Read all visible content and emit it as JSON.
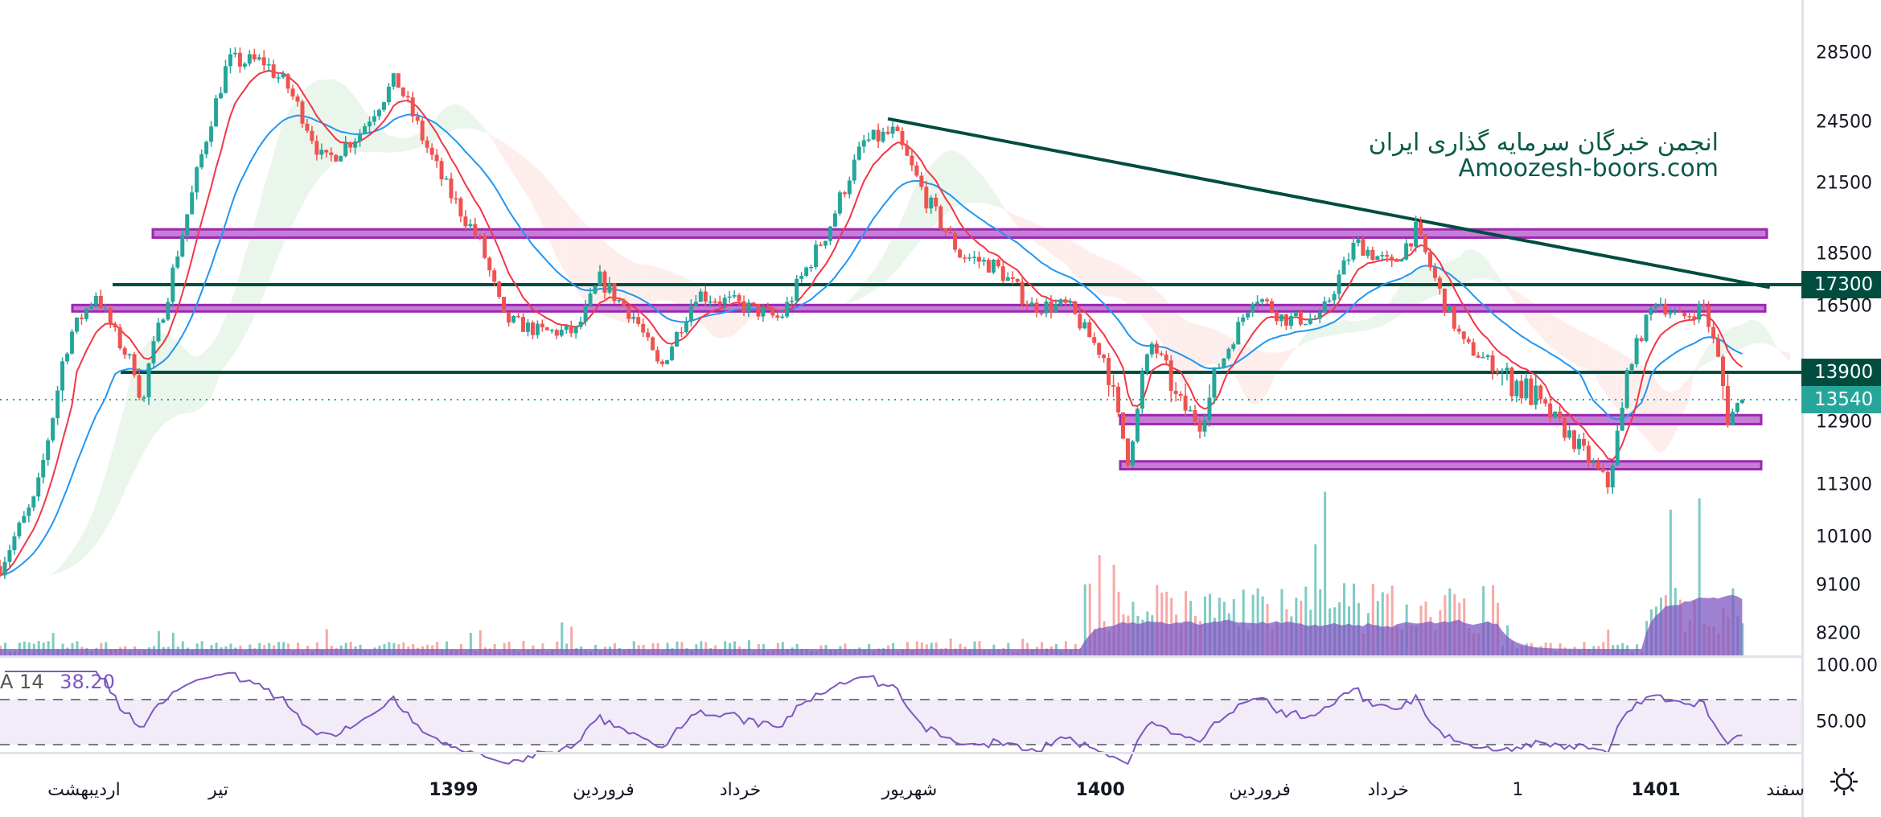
{
  "watermark": {
    "line1": "انجمن خبرگان سرمایه گذاری ایران",
    "line2": "Amoozesh-boors.com"
  },
  "price_axis": {
    "ticks": [
      "28500",
      "24500",
      "21500",
      "18500",
      "16500",
      "12900",
      "11300",
      "10100",
      "9100",
      "8200"
    ]
  },
  "badges": [
    {
      "value": "17300",
      "color": "#004d40"
    },
    {
      "value": "13900",
      "color": "#004d40"
    },
    {
      "value": "13540",
      "color": "#26a69a"
    }
  ],
  "rsi": {
    "label": "A 14",
    "value": "38.20",
    "ticks": [
      "100.00",
      "50.00"
    ],
    "upper": 70,
    "lower": 30,
    "color": "#7e57c2"
  },
  "time_axis": [
    {
      "label": "اردیبهشت",
      "bold": false
    },
    {
      "label": "تیر",
      "bold": false
    },
    {
      "label": "1399",
      "bold": true
    },
    {
      "label": "فروردین",
      "bold": false
    },
    {
      "label": "خرداد",
      "bold": false
    },
    {
      "label": "شهریور",
      "bold": false
    },
    {
      "label": "1400",
      "bold": true
    },
    {
      "label": "فروردین",
      "bold": false
    },
    {
      "label": "خرداد",
      "bold": false
    },
    {
      "label": "1",
      "bold": false
    },
    {
      "label": "1401",
      "bold": true
    },
    {
      "label": "سفند",
      "bold": false
    }
  ],
  "settings_icon": "gear-icon",
  "chart_data": {
    "type": "candlestick",
    "price_path": [
      [
        0,
        9500
      ],
      [
        30,
        11000
      ],
      [
        60,
        15500
      ],
      [
        80,
        17000
      ],
      [
        100,
        15000
      ],
      [
        120,
        13500
      ],
      [
        140,
        17000
      ],
      [
        160,
        21000
      ],
      [
        190,
        28000
      ],
      [
        220,
        28000
      ],
      [
        240,
        26500
      ],
      [
        270,
        22500
      ],
      [
        300,
        24000
      ],
      [
        330,
        27000
      ],
      [
        350,
        24000
      ],
      [
        370,
        21500
      ],
      [
        400,
        19000
      ],
      [
        420,
        16000
      ],
      [
        450,
        15500
      ],
      [
        480,
        15500
      ],
      [
        500,
        17500
      ],
      [
        530,
        16000
      ],
      [
        550,
        14000
      ],
      [
        580,
        17000
      ],
      [
        620,
        16500
      ],
      [
        650,
        16000
      ],
      [
        690,
        19500
      ],
      [
        720,
        23500
      ],
      [
        745,
        24000
      ],
      [
        770,
        21000
      ],
      [
        800,
        18500
      ],
      [
        830,
        18000
      ],
      [
        860,
        16500
      ],
      [
        890,
        16500
      ],
      [
        920,
        14500
      ],
      [
        940,
        12000
      ],
      [
        960,
        15000
      ],
      [
        980,
        13500
      ],
      [
        1000,
        12900
      ],
      [
        1020,
        14500
      ],
      [
        1045,
        17000
      ],
      [
        1070,
        16000
      ],
      [
        1100,
        16000
      ],
      [
        1130,
        19000
      ],
      [
        1160,
        18000
      ],
      [
        1180,
        19500
      ],
      [
        1200,
        17000
      ],
      [
        1220,
        15000
      ],
      [
        1250,
        14000
      ],
      [
        1280,
        13500
      ],
      [
        1310,
        12500
      ],
      [
        1340,
        11300
      ],
      [
        1360,
        14500
      ],
      [
        1380,
        16800
      ],
      [
        1400,
        16000
      ],
      [
        1420,
        16500
      ],
      [
        1440,
        13000
      ],
      [
        1452,
        13540
      ]
    ],
    "last_price": 13540,
    "horizontal_lines": [
      17300,
      13900
    ],
    "zones": [
      [
        19200,
        19550
      ],
      [
        16300,
        16550
      ],
      [
        12850,
        13100
      ],
      [
        11700,
        11900
      ]
    ],
    "trendline": [
      [
        740,
        24700
      ],
      [
        1475,
        17200
      ]
    ],
    "colors": {
      "up": "#26a69a",
      "down": "#ef5350",
      "ma_fast": "#f23645",
      "ma_slow": "#2196f3",
      "zone": "#c57ed6",
      "zone_border": "#9c27b0",
      "line": "#004d40",
      "volume": "#7e57c2"
    }
  }
}
